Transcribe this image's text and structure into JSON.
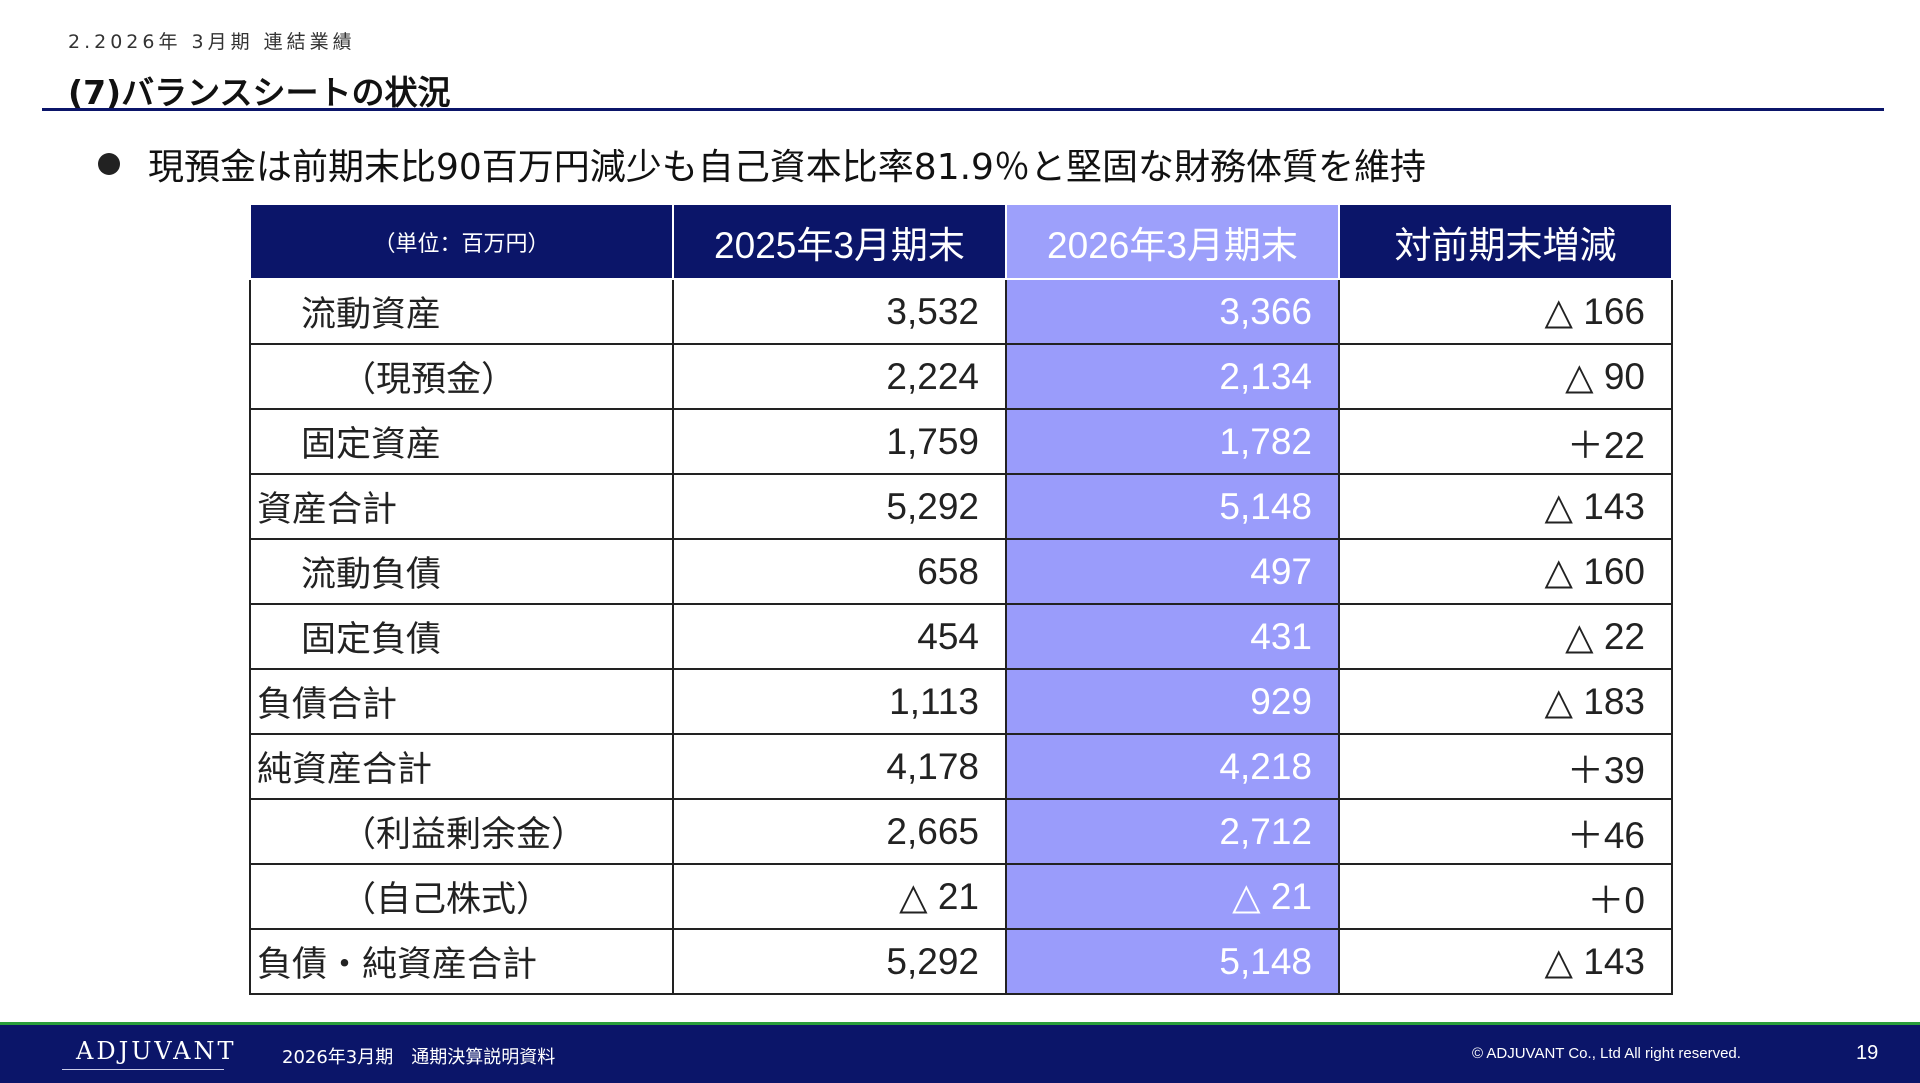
{
  "header": {
    "breadcrumb": "2.2026年 3月期 連結業績",
    "title": "(7)バランスシートの状況"
  },
  "summary": "現預金は前期末比90百万円減少も自己資本比率81.9％と堅固な財務体質を維持",
  "table": {
    "unit": "（単位：百万円）",
    "columns": [
      "2025年3月期末",
      "2026年3月期末",
      "対前期末増減"
    ],
    "rows": [
      {
        "label": "流動資産",
        "prev": "3,532",
        "curr": "3,366",
        "diff": "△ 166"
      },
      {
        "label": "（現預金）",
        "prev": "2,224",
        "curr": "2,134",
        "diff": "△ 90"
      },
      {
        "label": "固定資産",
        "prev": "1,759",
        "curr": "1,782",
        "diff": "＋22"
      },
      {
        "label": "資産合計",
        "prev": "5,292",
        "curr": "5,148",
        "diff": "△ 143"
      },
      {
        "label": "流動負債",
        "prev": "658",
        "curr": "497",
        "diff": "△ 160"
      },
      {
        "label": "固定負債",
        "prev": "454",
        "curr": "431",
        "diff": "△ 22"
      },
      {
        "label": "負債合計",
        "prev": "1,113",
        "curr": "929",
        "diff": "△ 183"
      },
      {
        "label": "純資産合計",
        "prev": "4,178",
        "curr": "4,218",
        "diff": "＋39"
      },
      {
        "label": "（利益剰余金）",
        "prev": "2,665",
        "curr": "2,712",
        "diff": "＋46"
      },
      {
        "label": "（自己株式）",
        "prev": "△ 21",
        "curr": "△ 21",
        "diff": "＋0"
      },
      {
        "label": "負債・純資産合計",
        "prev": "5,292",
        "curr": "5,148",
        "diff": "△ 143"
      }
    ]
  },
  "footer": {
    "logo": "ADJUVANT",
    "doc_title": "2026年3月期　通期決算説明資料",
    "copyright": "© ADJUVANT Co., Ltd All right reserved.",
    "page": "19"
  },
  "colors": {
    "navy": "#0b1569",
    "highlight": "#9a9cfb",
    "footer_accent": "#2a9d3a"
  }
}
